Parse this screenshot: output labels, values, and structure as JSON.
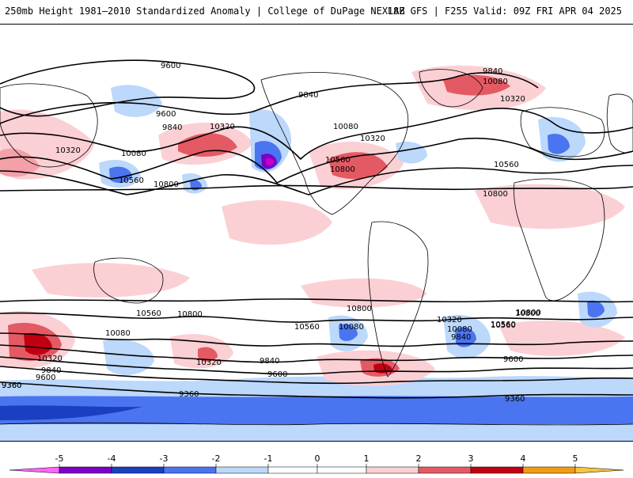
{
  "header": {
    "title": "250mb Height 1981–2010 Standardized Anomaly | College of DuPage NEXLAB",
    "run_info": "18Z GFS | F255 Valid: 09Z FRI APR 04 2025"
  },
  "colors": {
    "neg5": "#c600c6",
    "neg4": "#7a00c8",
    "neg3": "#1a3fc0",
    "neg2": "#4a74f0",
    "neg1": "#bcd8fb",
    "pos1": "#fbd0d4",
    "pos2": "#f4a0a8",
    "pos3": "#e45a64",
    "pos4": "#c00010",
    "pos5": "#f39c12"
  },
  "colorbar": {
    "tick_labels": [
      "-5",
      "-4",
      "-3",
      "-2",
      "-1",
      "0",
      "1",
      "2",
      "3",
      "4",
      "5"
    ]
  },
  "contour_labels": [
    {
      "id": "c1",
      "text": "9600"
    },
    {
      "id": "c2",
      "text": "9840"
    },
    {
      "id": "c3",
      "text": "10080"
    },
    {
      "id": "c4",
      "text": "10320"
    },
    {
      "id": "c5",
      "text": "9600"
    },
    {
      "id": "c6",
      "text": "9840"
    },
    {
      "id": "c7",
      "text": "10320"
    },
    {
      "id": "c8",
      "text": "10320"
    },
    {
      "id": "c9",
      "text": "10080"
    },
    {
      "id": "c10",
      "text": "10560"
    },
    {
      "id": "c11",
      "text": "10800"
    },
    {
      "id": "c12",
      "text": "9840"
    },
    {
      "id": "c13",
      "text": "10080"
    },
    {
      "id": "c14",
      "text": "10320"
    },
    {
      "id": "c15",
      "text": "10560"
    },
    {
      "id": "c16",
      "text": "10800"
    },
    {
      "id": "c17",
      "text": "10560"
    },
    {
      "id": "c18",
      "text": "10800"
    },
    {
      "id": "c19",
      "text": "10800"
    },
    {
      "id": "c20",
      "text": "10560"
    },
    {
      "id": "c21",
      "text": "10800"
    },
    {
      "id": "c22",
      "text": "10080"
    },
    {
      "id": "c23",
      "text": "10320"
    },
    {
      "id": "c24",
      "text": "9840"
    },
    {
      "id": "c25",
      "text": "9600"
    },
    {
      "id": "c26",
      "text": "9360"
    },
    {
      "id": "c27",
      "text": "10560"
    },
    {
      "id": "c28",
      "text": "10800"
    },
    {
      "id": "c29",
      "text": "10560"
    },
    {
      "id": "c30",
      "text": "10080"
    },
    {
      "id": "c31",
      "text": "9840"
    },
    {
      "id": "c32",
      "text": "9600"
    },
    {
      "id": "c33",
      "text": "10320"
    },
    {
      "id": "c34",
      "text": "10080"
    },
    {
      "id": "c35",
      "text": "9840"
    },
    {
      "id": "c36",
      "text": "10320"
    },
    {
      "id": "c37",
      "text": "10560"
    },
    {
      "id": "c38",
      "text": "10800"
    },
    {
      "id": "c39",
      "text": "9600"
    },
    {
      "id": "c40",
      "text": "9360"
    },
    {
      "id": "c41",
      "text": "9360"
    },
    {
      "id": "c42",
      "text": "9360"
    }
  ]
}
